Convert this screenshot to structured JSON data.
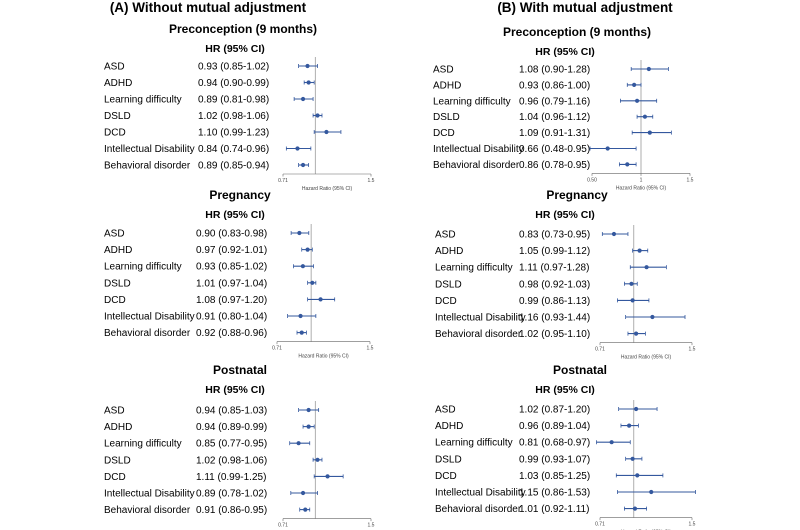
{
  "panel_titles": [
    "(A) Without mutual adjustment",
    "(B) With mutual adjustment"
  ],
  "hr_header": "HR (95% CI)",
  "x_axis_label": "Hazard Ratio (95% CI)",
  "colors": {
    "marker": "#34589e",
    "line": "#34589e",
    "refline": "#9a9a9a",
    "axis": "#666666"
  },
  "chart_data": [
    {
      "type": "forest",
      "panel": "A",
      "title": "Preconception (9 months)",
      "xlabel": "Hazard Ratio (95% CI)",
      "xlim": [
        0.71,
        1.5
      ],
      "ref": 1,
      "ticks": [
        "0.71",
        "1.5"
      ],
      "categories": [
        "ASD",
        "ADHD",
        "Learning difficulty",
        "DSLD",
        "DCD",
        "Intellectual Disability",
        "Behavioral disorder"
      ],
      "labels": [
        "0.93 (0.85-1.02)",
        "0.94 (0.90-0.99)",
        "0.89 (0.81-0.98)",
        "1.02 (0.98-1.06)",
        "1.10 (0.99-1.23)",
        "0.84 (0.74-0.96)",
        "0.89 (0.85-0.94)"
      ],
      "hr": [
        0.93,
        0.94,
        0.89,
        1.02,
        1.1,
        0.84,
        0.89
      ],
      "lo": [
        0.85,
        0.9,
        0.81,
        0.98,
        0.99,
        0.74,
        0.85
      ],
      "hi": [
        1.02,
        0.99,
        0.98,
        1.06,
        1.23,
        0.96,
        0.94
      ]
    },
    {
      "type": "forest",
      "panel": "A",
      "title": "Pregnancy",
      "xlabel": "Hazard Ratio (95% CI)",
      "xlim": [
        0.71,
        1.5
      ],
      "ref": 1,
      "ticks": [
        "0.71",
        "1.5"
      ],
      "categories": [
        "ASD",
        "ADHD",
        "Learning difficulty",
        "DSLD",
        "DCD",
        "Intellectual Disability",
        "Behavioral disorder"
      ],
      "labels": [
        "0.90 (0.83-0.98)",
        "0.97 (0.92-1.01)",
        "0.93 (0.85-1.02)",
        "1.01 (0.97-1.04)",
        "1.08 (0.97-1.20)",
        "0.91 (0.80-1.04)",
        "0.92 (0.88-0.96)"
      ],
      "hr": [
        0.9,
        0.97,
        0.93,
        1.01,
        1.08,
        0.91,
        0.92
      ],
      "lo": [
        0.83,
        0.92,
        0.85,
        0.97,
        0.97,
        0.8,
        0.88
      ],
      "hi": [
        0.98,
        1.01,
        1.02,
        1.04,
        1.2,
        1.04,
        0.96
      ]
    },
    {
      "type": "forest",
      "panel": "A",
      "title": "Postnatal",
      "xlabel": "Hazard Ratio (95% CI)",
      "xlim": [
        0.71,
        1.5
      ],
      "ref": 1,
      "ticks": [
        "0.71",
        "1.5"
      ],
      "categories": [
        "ASD",
        "ADHD",
        "Learning difficulty",
        "DSLD",
        "DCD",
        "Intellectual Disability",
        "Behavioral disorder"
      ],
      "labels": [
        "0.94 (0.85-1.03)",
        "0.94 (0.89-0.99)",
        "0.85 (0.77-0.95)",
        "1.02 (0.98-1.06)",
        "1.11 (0.99-1.25)",
        "0.89 (0.78-1.02)",
        "0.91 (0.86-0.95)"
      ],
      "hr": [
        0.94,
        0.94,
        0.85,
        1.02,
        1.11,
        0.89,
        0.91
      ],
      "lo": [
        0.85,
        0.89,
        0.77,
        0.98,
        0.99,
        0.78,
        0.86
      ],
      "hi": [
        1.03,
        0.99,
        0.95,
        1.06,
        1.25,
        1.02,
        0.95
      ]
    },
    {
      "type": "forest",
      "panel": "B",
      "title": "Preconception (9 months)",
      "xlabel": "Hazard Ratio (95% CI)",
      "xlim": [
        0.5,
        1.5
      ],
      "ref": 1,
      "ticks": [
        "0.50",
        "1",
        "1.5"
      ],
      "categories": [
        "ASD",
        "ADHD",
        "Learning difficulty",
        "DSLD",
        "DCD",
        "Intellectual Disability",
        "Behavioral disorder"
      ],
      "labels": [
        "1.08 (0.90-1.28)",
        "0.93 (0.86-1.00)",
        "0.96 (0.79-1.16)",
        "1.04 (0.96-1.12)",
        "1.09 (0.91-1.31)",
        "0.66 (0.48-0.95)",
        "0.86 (0.78-0.95)"
      ],
      "hr": [
        1.08,
        0.93,
        0.96,
        1.04,
        1.09,
        0.66,
        0.86
      ],
      "lo": [
        0.9,
        0.86,
        0.79,
        0.96,
        0.91,
        0.48,
        0.78
      ],
      "hi": [
        1.28,
        1.0,
        1.16,
        1.12,
        1.31,
        0.95,
        0.95
      ]
    },
    {
      "type": "forest",
      "panel": "B",
      "title": "Pregnancy",
      "xlabel": "Hazard Ratio (95% CI)",
      "xlim": [
        0.71,
        1.5
      ],
      "ref": 1,
      "ticks": [
        "0.71",
        "1.5"
      ],
      "categories": [
        "ASD",
        "ADHD",
        "Learning difficulty",
        "DSLD",
        "DCD",
        "Intellectual Disability",
        "Behavioral disorder"
      ],
      "labels": [
        "0.83 (0.73-0.95)",
        "1.05 (0.99-1.12)",
        "1.11 (0.97-1.28)",
        "0.98 (0.92-1.03)",
        "0.99 (0.86-1.13)",
        "1.16 (0.93-1.44)",
        "1.02 (0.95-1.10)"
      ],
      "hr": [
        0.83,
        1.05,
        1.11,
        0.98,
        0.99,
        1.16,
        1.02
      ],
      "lo": [
        0.73,
        0.99,
        0.97,
        0.92,
        0.86,
        0.93,
        0.95
      ],
      "hi": [
        0.95,
        1.12,
        1.28,
        1.03,
        1.13,
        1.44,
        1.1
      ]
    },
    {
      "type": "forest",
      "panel": "B",
      "title": "Postnatal",
      "xlabel": "Hazard Ratio (95% CI)",
      "xlim": [
        0.71,
        1.5
      ],
      "ref": 1,
      "ticks": [
        "0.71",
        "1.5"
      ],
      "categories": [
        "ASD",
        "ADHD",
        "Learning difficulty",
        "DSLD",
        "DCD",
        "Intellectual Disability",
        "Behavioral disorder"
      ],
      "labels": [
        "1.02 (0.87-1.20)",
        "0.96 (0.89-1.04)",
        "0.81 (0.68-0.97)",
        "0.99 (0.93-1.07)",
        "1.03 (0.85-1.25)",
        "1.15 (0.86-1.53)",
        "1.01 (0.92-1.11)"
      ],
      "hr": [
        1.02,
        0.96,
        0.81,
        0.99,
        1.03,
        1.15,
        1.01
      ],
      "lo": [
        0.87,
        0.89,
        0.68,
        0.93,
        0.85,
        0.86,
        0.92
      ],
      "hi": [
        1.2,
        1.04,
        0.97,
        1.07,
        1.25,
        1.53,
        1.11
      ]
    }
  ]
}
